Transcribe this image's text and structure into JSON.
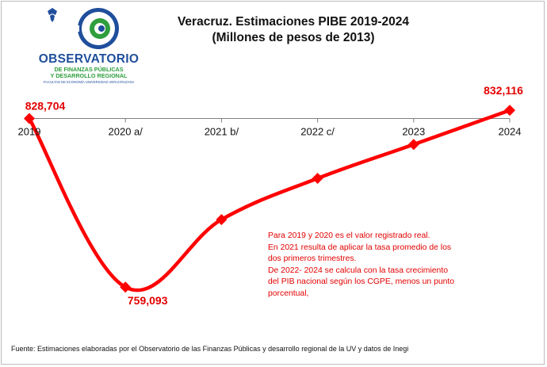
{
  "title": {
    "line1": "Veracruz. Estimaciones PIBE   2019-2024",
    "line2": "(Millones de pesos de 2013)"
  },
  "logo": {
    "name": "OBSERVATORIO",
    "line2": "DE FINANZAS PÚBLICAS",
    "line3": "Y DESARROLLO REGIONAL",
    "line4": "FACULTAD DE ECONOMÍA UNIVERSIDAD VERACRUZANA"
  },
  "chart_data": {
    "type": "line",
    "categories": [
      "2019",
      "2020 a/",
      "2021 b/",
      "2022 c/",
      "2023",
      "2024"
    ],
    "values": [
      828704,
      759093,
      787000,
      804000,
      818000,
      832116
    ],
    "data_labels": [
      "828,704",
      "759,093",
      "",
      "",
      "",
      "832,116"
    ],
    "ylim": [
      750000,
      840000
    ],
    "axis_crossing": 828704,
    "line_color": "#ff0000",
    "marker": "diamond",
    "grid": false,
    "legend": "none"
  },
  "note": {
    "lines": [
      "Para 2019  y  2020  es el valor registrado real.",
      "En 2021 resulta de aplicar la tasa promedio de los",
      "dos primeros trimestres.",
      "De 2022-  2024  se calcula con  la tasa  crecimiento",
      "del PIB nacional   según los CGPE, menos un punto",
      "porcentual,"
    ]
  },
  "source": "Fuente: Estimaciones  elaboradas por el Observatorio de las Finanzas Públicas  y desarrollo regional de la UV y datos de Inegi"
}
